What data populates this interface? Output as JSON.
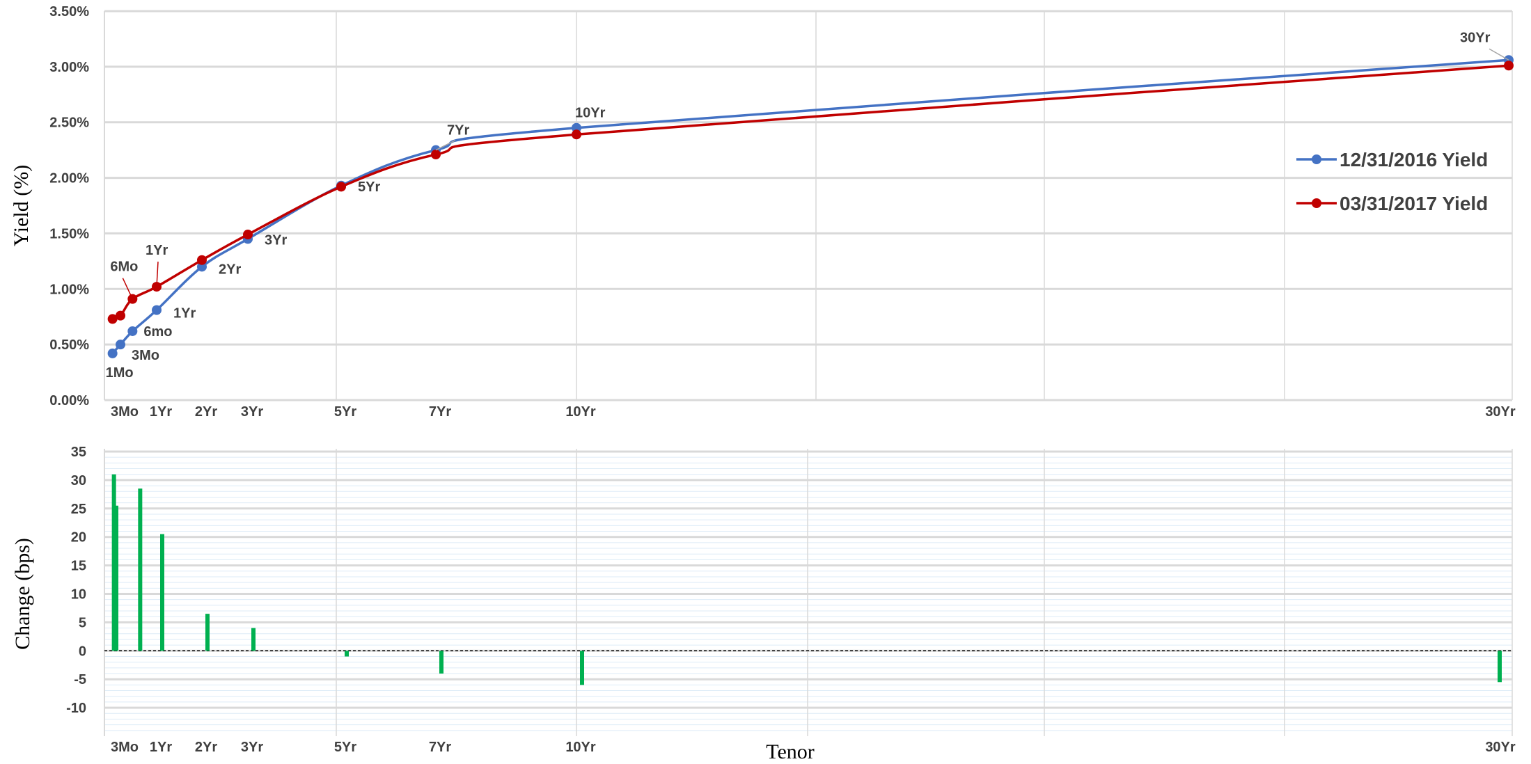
{
  "chart_data": [
    {
      "type": "line",
      "ylabel": "Yield (%)",
      "ylim": [
        0,
        3.5
      ],
      "yticks": [
        "0.00%",
        "0.50%",
        "1.00%",
        "1.50%",
        "2.00%",
        "2.50%",
        "3.00%",
        "3.50%"
      ],
      "x": [
        0.083,
        0.25,
        0.5,
        1,
        2,
        3,
        5,
        7,
        10,
        30
      ],
      "xlim": [
        0,
        30
      ],
      "xtick_values": [
        0.25,
        1,
        2,
        3,
        5,
        7,
        10,
        30
      ],
      "xtick_labels": [
        "3Mo",
        "1Yr",
        "2Yr",
        "3Yr",
        "5Yr",
        "7Yr",
        "10Yr",
        "30Yr"
      ],
      "grid": true,
      "legend_position": "right",
      "series": [
        {
          "name": "12/31/2016 Yield",
          "color": "#4472C4",
          "values": [
            0.42,
            0.5,
            0.62,
            0.81,
            1.2,
            1.45,
            1.93,
            2.25,
            2.45,
            3.06
          ]
        },
        {
          "name": "03/31/2017 Yield",
          "color": "#C00000",
          "values": [
            0.73,
            0.76,
            0.91,
            1.02,
            1.26,
            1.49,
            1.92,
            2.21,
            2.39,
            3.01
          ]
        }
      ],
      "point_labels": [
        {
          "text": "1Mo",
          "series": 0,
          "index": 0
        },
        {
          "text": "3Mo",
          "series": 0,
          "index": 1
        },
        {
          "text": "6mo",
          "series": 0,
          "index": 2
        },
        {
          "text": "1Yr",
          "series": 0,
          "index": 3
        },
        {
          "text": "2Yr",
          "series": 0,
          "index": 4
        },
        {
          "text": "3Yr",
          "series": 0,
          "index": 5
        },
        {
          "text": "5Yr",
          "series": 0,
          "index": 6
        },
        {
          "text": "7Yr",
          "series": 0,
          "index": 7
        },
        {
          "text": "10Yr",
          "series": 0,
          "index": 8
        },
        {
          "text": "30Yr",
          "series": 0,
          "index": 9
        },
        {
          "text": "6Mo",
          "series": 1,
          "index": 2
        },
        {
          "text": "1Yr",
          "series": 1,
          "index": 3
        }
      ]
    },
    {
      "type": "bar",
      "ylabel": "Change  (bps)",
      "xlabel": "Tenor",
      "ylim": [
        -15,
        35
      ],
      "yticks": [
        "-10",
        "-5",
        "0",
        "5",
        "10",
        "15",
        "20",
        "25",
        "30",
        "35"
      ],
      "x": [
        0.083,
        0.25,
        0.5,
        1,
        2,
        3,
        5,
        7,
        10,
        30
      ],
      "xlim": [
        0,
        30
      ],
      "xtick_values": [
        0.25,
        1,
        2,
        3,
        5,
        7,
        10,
        30
      ],
      "xtick_labels": [
        "3Mo",
        "1Yr",
        "2Yr",
        "3Yr",
        "5Yr",
        "7Yr",
        "10Yr",
        "30Yr"
      ],
      "color": "#00B050",
      "values": [
        31,
        25.5,
        28.5,
        20.5,
        6.5,
        4,
        -1,
        -4,
        -6,
        -5.5
      ],
      "grid": true
    }
  ]
}
